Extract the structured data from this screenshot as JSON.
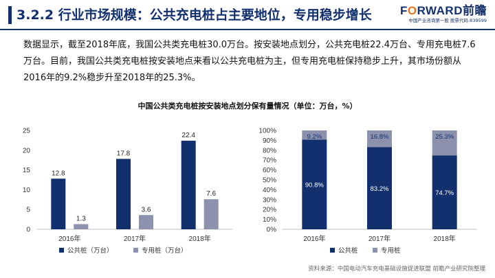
{
  "header": {
    "title": "3.2.2 行业市场规模：公共充电桩占主要地位，专用稳步增长",
    "logo_brand_pre": "F",
    "logo_brand_o": "O",
    "logo_brand_post": "RWARD前瞻",
    "logo_sub": "中国产业咨询第一股 股票代码:839599"
  },
  "paragraph": "数据显示，截至2018年底，我国公共类充电桩30.0万台。按安装地点划分，公共充电桩22.4万台、专用充电桩7.6万台。目前，我国公共类充电桩按安装地点来看以公共充电桩为主，但专用充电桩保持稳步上升，其市场份额从2016年的9.2%稳步升至2018年的25.3%。",
  "chart_title": "中国公共类充电桩按安装地点划分保有量情况（单位：万台，%）",
  "source": "资料来源：中国电动汽车充电基础设施促进联盟 前瞻产业研究院整理",
  "colors": {
    "navy": "#13306e",
    "gray": "#8c92ad",
    "orange": "#e8731a",
    "grid": "#d9d9d9"
  },
  "chart_data": [
    {
      "type": "bar",
      "categories": [
        "2016年",
        "2017年",
        "2018年"
      ],
      "series": [
        {
          "name": "公共桩（万台）",
          "values": [
            12.8,
            17.8,
            22.4
          ],
          "labels": [
            "12.8",
            "17.8",
            "22.4"
          ],
          "color": "#13306e"
        },
        {
          "name": "专用桩（万台）",
          "values": [
            1.3,
            3.6,
            7.6
          ],
          "labels": [
            "1.3",
            "3.6",
            "7.6"
          ],
          "color": "#8c92ad"
        }
      ],
      "ylim": [
        0,
        25
      ],
      "yticks": [
        0,
        5,
        10,
        15,
        20,
        25
      ],
      "ytick_labels": [
        "0",
        "5",
        "10",
        "15",
        "20",
        "25"
      ],
      "grid": false,
      "legend": "bottom"
    },
    {
      "type": "bar",
      "stacked": true,
      "categories": [
        "2016年",
        "2017年",
        "2018年"
      ],
      "series": [
        {
          "name": "公共桩",
          "values": [
            90.8,
            83.2,
            74.7
          ],
          "labels": [
            "90.8%",
            "83.2%",
            "74.7%"
          ],
          "color": "#13306e"
        },
        {
          "name": "专用桩",
          "values": [
            9.2,
            16.8,
            25.3
          ],
          "labels": [
            "9.2%",
            "16.8%",
            "25.3%"
          ],
          "color": "#8c92ad"
        }
      ],
      "ylim": [
        0,
        100
      ],
      "yticks": [
        0,
        10,
        20,
        30,
        40,
        50,
        60,
        70,
        80,
        90,
        100
      ],
      "ytick_labels": [
        "0%",
        "10%",
        "20%",
        "30%",
        "40%",
        "50%",
        "60%",
        "70%",
        "80%",
        "90%",
        "100%"
      ],
      "grid": false,
      "legend": "bottom"
    }
  ]
}
